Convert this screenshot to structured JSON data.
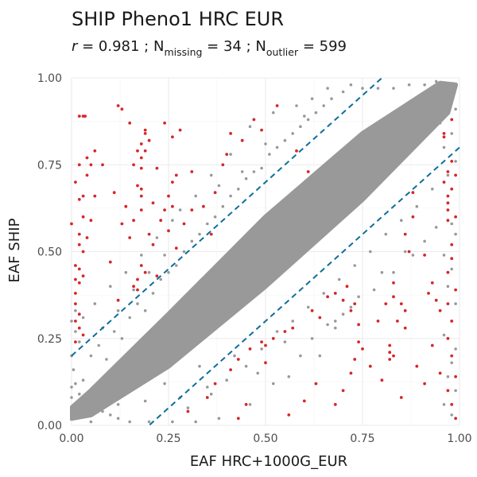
{
  "chart_data": {
    "type": "scatter",
    "title": "SHIP Pheno1 HRC EUR",
    "subtitle": {
      "r_symbol": "r",
      "r_text": " = 0.981 ; N",
      "missing_sub": "missing",
      "missing_text": " = 34 ; N",
      "outlier_sub": "outlier",
      "outlier_text": " = 599"
    },
    "xlabel": "EAF HRC+1000G_EUR",
    "ylabel": "EAF SHIP",
    "xlim": [
      0,
      1
    ],
    "ylim": [
      0,
      1
    ],
    "x_ticks": [
      0,
      0.25,
      0.5,
      0.75,
      1
    ],
    "y_ticks": [
      0,
      0.25,
      0.5,
      0.75,
      1
    ],
    "x_tick_labels": [
      "0.00",
      "0.25",
      "0.50",
      "0.75",
      "1.00"
    ],
    "y_tick_labels": [
      "0.00",
      "0.25",
      "0.50",
      "0.75",
      "1.00"
    ],
    "grid": true,
    "colors": {
      "main_points": "#999999",
      "outlier_points": "#d62728",
      "threshold_lines": "#0c6e9a"
    },
    "threshold_lines": [
      {
        "name": "upper",
        "slope": 1,
        "intercept": 0.2
      },
      {
        "name": "lower",
        "slope": 1,
        "intercept": -0.2
      }
    ],
    "main_band": {
      "polygon": [
        [
          0.0,
          0.02
        ],
        [
          0.05,
          0.03
        ],
        [
          0.25,
          0.17
        ],
        [
          0.5,
          0.4
        ],
        [
          0.75,
          0.65
        ],
        [
          0.97,
          0.9
        ],
        [
          0.99,
          0.98
        ],
        [
          0.95,
          0.985
        ],
        [
          0.75,
          0.84
        ],
        [
          0.5,
          0.6
        ],
        [
          0.25,
          0.32
        ],
        [
          0.05,
          0.1
        ],
        [
          0.0,
          0.05
        ]
      ]
    },
    "main_scatter": [
      [
        0.01,
        0.27
      ],
      [
        0.02,
        0.24
      ],
      [
        0.0,
        0.2
      ],
      [
        0.005,
        0.16
      ],
      [
        0.01,
        0.12
      ],
      [
        0.02,
        0.09
      ],
      [
        0.03,
        0.13
      ],
      [
        0.04,
        0.07
      ],
      [
        0.06,
        0.05
      ],
      [
        0.08,
        0.04
      ],
      [
        0.1,
        0.03
      ],
      [
        0.12,
        0.02
      ],
      [
        0.15,
        0.01
      ],
      [
        0.05,
        0.2
      ],
      [
        0.07,
        0.23
      ],
      [
        0.09,
        0.19
      ],
      [
        0.11,
        0.27
      ],
      [
        0.13,
        0.25
      ],
      [
        0.15,
        0.31
      ],
      [
        0.17,
        0.35
      ],
      [
        0.19,
        0.33
      ],
      [
        0.21,
        0.38
      ],
      [
        0.23,
        0.42
      ],
      [
        0.25,
        0.44
      ],
      [
        0.27,
        0.46
      ],
      [
        0.29,
        0.5
      ],
      [
        0.31,
        0.53
      ],
      [
        0.33,
        0.55
      ],
      [
        0.35,
        0.58
      ],
      [
        0.37,
        0.6
      ],
      [
        0.39,
        0.63
      ],
      [
        0.41,
        0.66
      ],
      [
        0.43,
        0.68
      ],
      [
        0.45,
        0.71
      ],
      [
        0.47,
        0.73
      ],
      [
        0.49,
        0.74
      ],
      [
        0.51,
        0.78
      ],
      [
        0.53,
        0.8
      ],
      [
        0.55,
        0.82
      ],
      [
        0.57,
        0.84
      ],
      [
        0.59,
        0.86
      ],
      [
        0.61,
        0.88
      ],
      [
        0.63,
        0.9
      ],
      [
        0.65,
        0.92
      ],
      [
        0.67,
        0.94
      ],
      [
        0.7,
        0.96
      ],
      [
        0.72,
        0.98
      ],
      [
        0.28,
        0.62
      ],
      [
        0.36,
        0.72
      ],
      [
        0.41,
        0.78
      ],
      [
        0.3,
        0.05
      ],
      [
        0.36,
        0.09
      ],
      [
        0.4,
        0.13
      ],
      [
        0.45,
        0.17
      ],
      [
        0.49,
        0.22
      ],
      [
        0.53,
        0.27
      ],
      [
        0.57,
        0.3
      ],
      [
        0.61,
        0.34
      ],
      [
        0.65,
        0.38
      ],
      [
        0.69,
        0.42
      ],
      [
        0.73,
        0.46
      ],
      [
        0.77,
        0.5
      ],
      [
        0.81,
        0.55
      ],
      [
        0.85,
        0.59
      ],
      [
        0.89,
        0.63
      ],
      [
        0.93,
        0.68
      ],
      [
        0.97,
        0.72
      ],
      [
        0.99,
        0.76
      ],
      [
        0.96,
        0.8
      ],
      [
        0.98,
        0.84
      ],
      [
        0.95,
        0.87
      ],
      [
        0.99,
        0.91
      ],
      [
        0.97,
        0.64
      ],
      [
        0.98,
        0.58
      ],
      [
        0.99,
        0.55
      ],
      [
        0.96,
        0.49
      ],
      [
        0.98,
        0.45
      ],
      [
        0.97,
        0.4
      ],
      [
        0.99,
        0.35
      ],
      [
        0.98,
        0.3
      ],
      [
        0.96,
        0.26
      ],
      [
        0.99,
        0.22
      ],
      [
        0.98,
        0.18
      ],
      [
        0.97,
        0.14
      ],
      [
        0.99,
        0.1
      ],
      [
        0.96,
        0.06
      ],
      [
        0.98,
        0.03
      ],
      [
        0.97,
        0.95
      ],
      [
        0.58,
        0.92
      ],
      [
        0.62,
        0.94
      ],
      [
        0.66,
        0.97
      ],
      [
        0.46,
        0.86
      ],
      [
        0.52,
        0.9
      ],
      [
        0.24,
        0.49
      ],
      [
        0.2,
        0.44
      ],
      [
        0.16,
        0.39
      ],
      [
        0.12,
        0.33
      ],
      [
        0.08,
        0.28
      ],
      [
        0.03,
        0.31
      ],
      [
        0.06,
        0.35
      ],
      [
        0.1,
        0.4
      ],
      [
        0.14,
        0.44
      ],
      [
        0.18,
        0.49
      ],
      [
        0.22,
        0.54
      ],
      [
        0.26,
        0.59
      ],
      [
        0.32,
        0.66
      ],
      [
        0.38,
        0.69
      ],
      [
        0.44,
        0.73
      ],
      [
        0.5,
        0.81
      ],
      [
        0.6,
        0.89
      ],
      [
        0.35,
        0.11
      ],
      [
        0.42,
        0.2
      ],
      [
        0.48,
        0.15
      ],
      [
        0.55,
        0.24
      ],
      [
        0.62,
        0.25
      ],
      [
        0.68,
        0.3
      ],
      [
        0.72,
        0.34
      ],
      [
        0.78,
        0.39
      ],
      [
        0.83,
        0.44
      ],
      [
        0.88,
        0.49
      ],
      [
        0.91,
        0.53
      ],
      [
        0.94,
        0.57
      ],
      [
        0.86,
        0.5
      ],
      [
        0.8,
        0.44
      ],
      [
        0.74,
        0.37
      ],
      [
        0.66,
        0.29
      ],
      [
        0.59,
        0.2
      ],
      [
        0.52,
        0.12
      ],
      [
        0.46,
        0.06
      ],
      [
        0.38,
        0.02
      ],
      [
        0.32,
        0.01
      ],
      [
        0.26,
        0.01
      ],
      [
        0.2,
        0.01
      ],
      [
        0.28,
        0.08
      ],
      [
        0.33,
        0.17
      ],
      [
        0.24,
        0.12
      ],
      [
        0.19,
        0.07
      ],
      [
        0.17,
        0.14
      ],
      [
        0.22,
        0.2
      ],
      [
        0.12,
        0.06
      ],
      [
        0.05,
        0.01
      ],
      [
        0.0,
        0.08
      ],
      [
        0.0,
        0.11
      ],
      [
        0.01,
        0.33
      ],
      [
        0.0,
        0.3
      ],
      [
        0.71,
        0.79
      ],
      [
        0.75,
        0.97
      ],
      [
        0.79,
        0.97
      ],
      [
        0.83,
        0.97
      ],
      [
        0.87,
        0.98
      ],
      [
        0.91,
        0.98
      ],
      [
        0.94,
        0.99
      ],
      [
        0.68,
        0.28
      ],
      [
        0.7,
        0.32
      ],
      [
        0.56,
        0.14
      ],
      [
        0.64,
        0.2
      ]
    ],
    "outlier_points": [
      [
        0.02,
        0.89
      ],
      [
        0.03,
        0.89
      ],
      [
        0.035,
        0.89
      ],
      [
        0.04,
        0.72
      ],
      [
        0.04,
        0.77
      ],
      [
        0.02,
        0.65
      ],
      [
        0.03,
        0.66
      ],
      [
        0.02,
        0.55
      ],
      [
        0.03,
        0.6
      ],
      [
        0.02,
        0.52
      ],
      [
        0.01,
        0.46
      ],
      [
        0.01,
        0.42
      ],
      [
        0.02,
        0.41
      ],
      [
        0.01,
        0.38
      ],
      [
        0.01,
        0.35
      ],
      [
        0.01,
        0.3
      ],
      [
        0.02,
        0.28
      ],
      [
        0.03,
        0.26
      ],
      [
        0.01,
        0.24
      ],
      [
        0.02,
        0.32
      ],
      [
        0.02,
        0.45
      ],
      [
        0.03,
        0.5
      ],
      [
        0.0,
        0.58
      ],
      [
        0.01,
        0.7
      ],
      [
        0.02,
        0.75
      ],
      [
        0.05,
        0.75
      ],
      [
        0.06,
        0.66
      ],
      [
        0.05,
        0.59
      ],
      [
        0.04,
        0.54
      ],
      [
        0.03,
        0.43
      ],
      [
        0.13,
        0.91
      ],
      [
        0.12,
        0.92
      ],
      [
        0.15,
        0.87
      ],
      [
        0.16,
        0.75
      ],
      [
        0.17,
        0.79
      ],
      [
        0.18,
        0.77
      ],
      [
        0.18,
        0.81
      ],
      [
        0.19,
        0.84
      ],
      [
        0.19,
        0.85
      ],
      [
        0.18,
        0.74
      ],
      [
        0.18,
        0.68
      ],
      [
        0.18,
        0.66
      ],
      [
        0.17,
        0.69
      ],
      [
        0.19,
        0.79
      ],
      [
        0.18,
        0.62
      ],
      [
        0.14,
        0.63
      ],
      [
        0.16,
        0.59
      ],
      [
        0.15,
        0.54
      ],
      [
        0.11,
        0.67
      ],
      [
        0.08,
        0.75
      ],
      [
        0.06,
        0.79
      ],
      [
        0.1,
        0.47
      ],
      [
        0.13,
        0.58
      ],
      [
        0.12,
        0.36
      ],
      [
        0.16,
        0.4
      ],
      [
        0.17,
        0.39
      ],
      [
        0.17,
        0.42
      ],
      [
        0.18,
        0.46
      ],
      [
        0.19,
        0.44
      ],
      [
        0.21,
        0.52
      ],
      [
        0.22,
        0.43
      ],
      [
        0.23,
        0.59
      ],
      [
        0.24,
        0.62
      ],
      [
        0.25,
        0.66
      ],
      [
        0.26,
        0.63
      ],
      [
        0.25,
        0.56
      ],
      [
        0.27,
        0.51
      ],
      [
        0.26,
        0.7
      ],
      [
        0.29,
        0.58
      ],
      [
        0.31,
        0.62
      ],
      [
        0.27,
        0.72
      ],
      [
        0.22,
        0.74
      ],
      [
        0.21,
        0.64
      ],
      [
        0.2,
        0.55
      ],
      [
        0.2,
        0.82
      ],
      [
        0.24,
        0.87
      ],
      [
        0.26,
        0.83
      ],
      [
        0.31,
        0.73
      ],
      [
        0.34,
        0.63
      ],
      [
        0.37,
        0.67
      ],
      [
        0.39,
        0.75
      ],
      [
        0.41,
        0.84
      ],
      [
        0.44,
        0.82
      ],
      [
        0.47,
        0.88
      ],
      [
        0.49,
        0.85
      ],
      [
        0.53,
        0.92
      ],
      [
        0.58,
        0.79
      ],
      [
        0.61,
        0.73
      ],
      [
        0.28,
        0.85
      ],
      [
        0.36,
        0.55
      ],
      [
        0.4,
        0.78
      ],
      [
        0.3,
        0.04
      ],
      [
        0.35,
        0.08
      ],
      [
        0.37,
        0.12
      ],
      [
        0.41,
        0.16
      ],
      [
        0.43,
        0.19
      ],
      [
        0.46,
        0.22
      ],
      [
        0.49,
        0.24
      ],
      [
        0.5,
        0.23
      ],
      [
        0.52,
        0.25
      ],
      [
        0.55,
        0.27
      ],
      [
        0.57,
        0.28
      ],
      [
        0.62,
        0.33
      ],
      [
        0.64,
        0.31
      ],
      [
        0.66,
        0.37
      ],
      [
        0.68,
        0.38
      ],
      [
        0.7,
        0.36
      ],
      [
        0.71,
        0.4
      ],
      [
        0.72,
        0.33
      ],
      [
        0.73,
        0.35
      ],
      [
        0.74,
        0.29
      ],
      [
        0.74,
        0.24
      ],
      [
        0.75,
        0.22
      ],
      [
        0.73,
        0.19
      ],
      [
        0.72,
        0.15
      ],
      [
        0.7,
        0.1
      ],
      [
        0.68,
        0.06
      ],
      [
        0.63,
        0.12
      ],
      [
        0.6,
        0.07
      ],
      [
        0.56,
        0.03
      ],
      [
        0.5,
        0.18
      ],
      [
        0.45,
        0.06
      ],
      [
        0.43,
        0.02
      ],
      [
        0.82,
        0.23
      ],
      [
        0.82,
        0.21
      ],
      [
        0.82,
        0.19
      ],
      [
        0.83,
        0.2
      ],
      [
        0.84,
        0.3
      ],
      [
        0.83,
        0.37
      ],
      [
        0.85,
        0.35
      ],
      [
        0.86,
        0.33
      ],
      [
        0.86,
        0.28
      ],
      [
        0.87,
        0.5
      ],
      [
        0.86,
        0.55
      ],
      [
        0.88,
        0.6
      ],
      [
        0.88,
        0.67
      ],
      [
        0.91,
        0.49
      ],
      [
        0.93,
        0.41
      ],
      [
        0.94,
        0.36
      ],
      [
        0.95,
        0.33
      ],
      [
        0.97,
        0.59
      ],
      [
        0.97,
        0.62
      ],
      [
        0.97,
        0.64
      ],
      [
        0.97,
        0.66
      ],
      [
        0.96,
        0.7
      ],
      [
        0.97,
        0.73
      ],
      [
        0.98,
        0.76
      ],
      [
        0.99,
        0.72
      ],
      [
        0.98,
        0.68
      ],
      [
        0.99,
        0.6
      ],
      [
        0.98,
        0.52
      ],
      [
        0.98,
        0.48
      ],
      [
        0.97,
        0.44
      ],
      [
        0.99,
        0.39
      ],
      [
        0.97,
        0.35
      ],
      [
        0.98,
        0.3
      ],
      [
        0.97,
        0.25
      ],
      [
        0.98,
        0.2
      ],
      [
        0.99,
        0.14
      ],
      [
        0.97,
        0.1
      ],
      [
        0.98,
        0.06
      ],
      [
        0.99,
        0.02
      ],
      [
        0.96,
        0.84
      ],
      [
        0.98,
        0.88
      ],
      [
        0.96,
        0.83
      ],
      [
        0.92,
        0.38
      ],
      [
        0.91,
        0.12
      ],
      [
        0.89,
        0.17
      ],
      [
        0.93,
        0.23
      ],
      [
        0.95,
        0.15
      ],
      [
        0.85,
        0.08
      ],
      [
        0.8,
        0.13
      ],
      [
        0.77,
        0.17
      ],
      [
        0.79,
        0.3
      ],
      [
        0.81,
        0.35
      ],
      [
        0.83,
        0.41
      ]
    ]
  }
}
